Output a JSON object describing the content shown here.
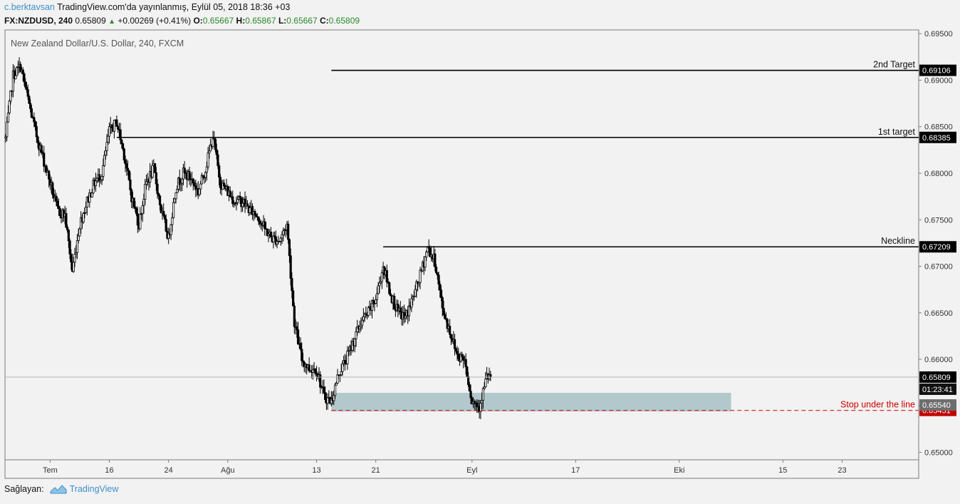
{
  "header": {
    "author": "c.berktavsan",
    "published": "TradingView.com'da yayınlanmış, Eylül 05, 2018 18:36 +03",
    "symbol": "FX:NZDUSD, 240",
    "last": "0.65809",
    "change": "+0.00269 (+0.41%)",
    "o_label": "O:",
    "o": "0.65667",
    "h_label": "H:",
    "h": "0.65867",
    "l_label": "L:",
    "l": "0.65667",
    "c_label": "C:",
    "c": "0.65809"
  },
  "footer": {
    "provider_label": "Sağlayan:",
    "brand": "TradingView"
  },
  "colors": {
    "candle": "#000000",
    "zone": "#b2c8cc",
    "stop": "#cc0000",
    "grid": "#d9d9d9",
    "author": "#3d8fc9",
    "up": "#2a8a2a"
  },
  "chart_data": {
    "type": "candlestick",
    "title": "New Zealand Dollar/U.S. Dollar, 240, FXCM",
    "ylim": [
      0.6492,
      0.6954
    ],
    "y_ticks": [
      "0.69500",
      "0.69000",
      "0.68500",
      "0.68000",
      "0.67500",
      "0.67000",
      "0.66500",
      "0.66000",
      "0.65500",
      "0.65000"
    ],
    "x_ticks": [
      "Tem",
      "16",
      "24",
      "Ağu",
      "13",
      "21",
      "Eyl",
      "17",
      "Eki",
      "15",
      "23"
    ],
    "close_path": [
      {
        "date": "2018-07-02",
        "v": 0.6838
      },
      {
        "date": "2018-07-03",
        "v": 0.6905
      },
      {
        "date": "2018-07-04",
        "v": 0.6915
      },
      {
        "date": "2018-07-05",
        "v": 0.688
      },
      {
        "date": "2018-07-06",
        "v": 0.6845
      },
      {
        "date": "2018-07-08",
        "v": 0.679
      },
      {
        "date": "2018-07-09",
        "v": 0.676
      },
      {
        "date": "2018-07-10",
        "v": 0.6755
      },
      {
        "date": "2018-07-11",
        "v": 0.6695
      },
      {
        "date": "2018-07-12",
        "v": 0.6745
      },
      {
        "date": "2018-07-13",
        "v": 0.677
      },
      {
        "date": "2018-07-14",
        "v": 0.679
      },
      {
        "date": "2018-07-15",
        "v": 0.68
      },
      {
        "date": "2018-07-16",
        "v": 0.6845
      },
      {
        "date": "2018-07-17",
        "v": 0.6855
      },
      {
        "date": "2018-07-18",
        "v": 0.682
      },
      {
        "date": "2018-07-19",
        "v": 0.6775
      },
      {
        "date": "2018-07-20",
        "v": 0.6745
      },
      {
        "date": "2018-07-21",
        "v": 0.679
      },
      {
        "date": "2018-07-22",
        "v": 0.6805
      },
      {
        "date": "2018-07-23",
        "v": 0.676
      },
      {
        "date": "2018-07-24",
        "v": 0.673
      },
      {
        "date": "2018-07-25",
        "v": 0.6785
      },
      {
        "date": "2018-07-26",
        "v": 0.68
      },
      {
        "date": "2018-07-27",
        "v": 0.6795
      },
      {
        "date": "2018-07-28",
        "v": 0.678
      },
      {
        "date": "2018-07-29",
        "v": 0.6805
      },
      {
        "date": "2018-07-30",
        "v": 0.684
      },
      {
        "date": "2018-07-31",
        "v": 0.679
      },
      {
        "date": "2018-08-01",
        "v": 0.678
      },
      {
        "date": "2018-08-02",
        "v": 0.677
      },
      {
        "date": "2018-08-03",
        "v": 0.677
      },
      {
        "date": "2018-08-04",
        "v": 0.676
      },
      {
        "date": "2018-08-05",
        "v": 0.6755
      },
      {
        "date": "2018-08-06",
        "v": 0.674
      },
      {
        "date": "2018-08-07",
        "v": 0.673
      },
      {
        "date": "2018-08-08",
        "v": 0.6728
      },
      {
        "date": "2018-08-09",
        "v": 0.6745
      },
      {
        "date": "2018-08-10",
        "v": 0.664
      },
      {
        "date": "2018-08-11",
        "v": 0.66
      },
      {
        "date": "2018-08-12",
        "v": 0.659
      },
      {
        "date": "2018-08-13",
        "v": 0.659
      },
      {
        "date": "2018-08-14",
        "v": 0.656
      },
      {
        "date": "2018-08-15",
        "v": 0.6555
      },
      {
        "date": "2018-08-16",
        "v": 0.6585
      },
      {
        "date": "2018-08-17",
        "v": 0.66
      },
      {
        "date": "2018-08-18",
        "v": 0.662
      },
      {
        "date": "2018-08-19",
        "v": 0.664
      },
      {
        "date": "2018-08-20",
        "v": 0.665
      },
      {
        "date": "2018-08-21",
        "v": 0.6665
      },
      {
        "date": "2018-08-22",
        "v": 0.67
      },
      {
        "date": "2018-08-23",
        "v": 0.667
      },
      {
        "date": "2018-08-24",
        "v": 0.665
      },
      {
        "date": "2018-08-25",
        "v": 0.6645
      },
      {
        "date": "2018-08-26",
        "v": 0.6665
      },
      {
        "date": "2018-08-27",
        "v": 0.669
      },
      {
        "date": "2018-08-28",
        "v": 0.672
      },
      {
        "date": "2018-08-29",
        "v": 0.6705
      },
      {
        "date": "2018-08-30",
        "v": 0.6655
      },
      {
        "date": "2018-08-31",
        "v": 0.663
      },
      {
        "date": "2018-09-01",
        "v": 0.6605
      },
      {
        "date": "2018-09-02",
        "v": 0.66
      },
      {
        "date": "2018-09-03",
        "v": 0.6555
      },
      {
        "date": "2018-09-04",
        "v": 0.655
      },
      {
        "date": "2018-09-05",
        "v": 0.6581
      }
    ],
    "horizontal_levels": [
      {
        "label": "2nd Target",
        "value": 0.69106,
        "value_label": "0.69106",
        "from_date": "2018-08-15"
      },
      {
        "label": "1st target",
        "value": 0.68385,
        "value_label": "0.68385",
        "from_date": "2018-07-17"
      },
      {
        "label": "Neckline",
        "value": 0.67209,
        "value_label": "0.67209",
        "from_date": "2018-08-22"
      },
      {
        "label": "Stop under the line",
        "value": 0.65451,
        "value_label": "0.65451",
        "from_date": "2018-08-15",
        "style": "dashed"
      }
    ],
    "current_price": {
      "value": 0.65809,
      "label": "0.65809",
      "countdown": "01:23:41"
    },
    "zone": {
      "top": 0.6564,
      "bottom": 0.6544,
      "from_date": "2018-08-15",
      "to_date": "2018-10-08",
      "marker_label": "0.65540"
    }
  }
}
